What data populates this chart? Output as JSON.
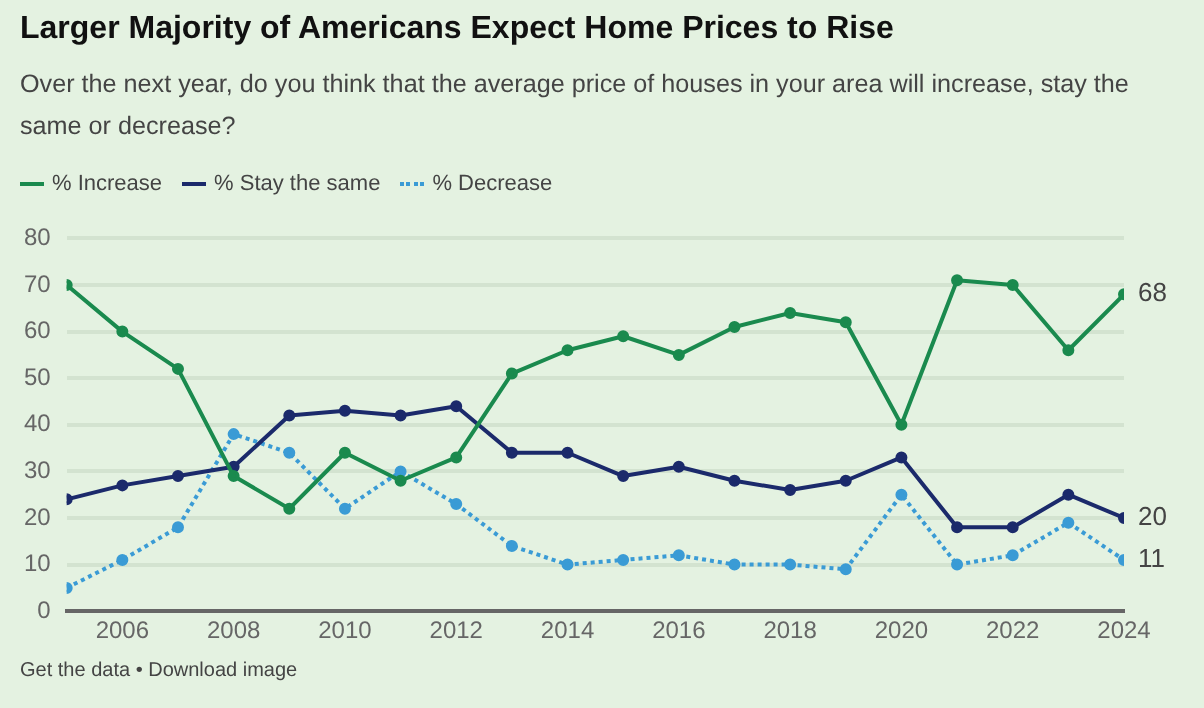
{
  "chart_data": {
    "type": "line",
    "title": "Larger Majority of Americans Expect Home Prices to Rise",
    "subtitle": "Over the next year, do you think that the average price of houses in your area will increase, stay the same or decrease?",
    "x": [
      2005,
      2006,
      2007,
      2008,
      2009,
      2010,
      2011,
      2012,
      2013,
      2014,
      2015,
      2016,
      2017,
      2018,
      2019,
      2020,
      2021,
      2022,
      2023,
      2024
    ],
    "series": [
      {
        "name": "% Increase",
        "color": "#1a8a4e",
        "line_style": "solid",
        "values": [
          70,
          60,
          52,
          29,
          22,
          34,
          28,
          33,
          51,
          56,
          59,
          55,
          61,
          64,
          62,
          40,
          71,
          70,
          56,
          68
        ],
        "value_labels": [
          null,
          null,
          null,
          null,
          null,
          null,
          null,
          null,
          null,
          null,
          null,
          null,
          null,
          null,
          null,
          null,
          null,
          null,
          null,
          "68"
        ]
      },
      {
        "name": "% Stay the same",
        "color": "#1b2a6b",
        "line_style": "solid",
        "values": [
          24,
          27,
          29,
          31,
          42,
          43,
          42,
          44,
          34,
          34,
          29,
          31,
          28,
          26,
          28,
          33,
          18,
          18,
          25,
          20
        ],
        "value_labels": [
          null,
          null,
          null,
          null,
          null,
          null,
          null,
          null,
          null,
          null,
          null,
          null,
          null,
          null,
          null,
          null,
          null,
          null,
          null,
          "20"
        ]
      },
      {
        "name": "% Decrease",
        "color": "#3a9bd5",
        "line_style": "dotted",
        "values": [
          5,
          11,
          18,
          38,
          34,
          22,
          30,
          23,
          14,
          10,
          11,
          12,
          10,
          10,
          9,
          25,
          10,
          12,
          19,
          11
        ],
        "value_labels": [
          null,
          null,
          null,
          null,
          null,
          null,
          null,
          null,
          null,
          null,
          null,
          null,
          null,
          null,
          null,
          null,
          null,
          null,
          null,
          "11"
        ]
      }
    ],
    "xlim": [
      2005,
      2024
    ],
    "xticks": [
      2006,
      2008,
      2010,
      2012,
      2014,
      2016,
      2018,
      2020,
      2022,
      2024
    ],
    "ylim": [
      0,
      80
    ],
    "yticks": [
      0,
      10,
      20,
      30,
      40,
      50,
      60,
      70,
      80
    ],
    "grid": "y",
    "legend": "top left",
    "marker": "circle",
    "annotations": [
      "Get the data • Download image"
    ]
  }
}
